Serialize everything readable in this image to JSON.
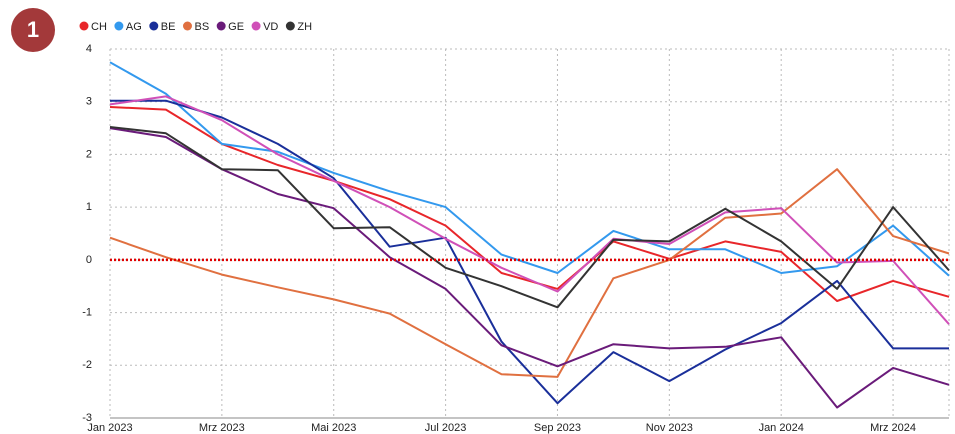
{
  "badge": "1",
  "chart_data": {
    "type": "line",
    "categories": [
      "Jan 2023",
      null,
      "Mrz 2023",
      null,
      "Mai 2023",
      null,
      "Jul 2023",
      null,
      "Sep 2023",
      null,
      "Nov 2023",
      null,
      "Jan 2024",
      null,
      "Mrz 2024",
      null
    ],
    "series": [
      {
        "name": "CH",
        "color": "#e8262a",
        "values": [
          2.9,
          2.85,
          2.2,
          1.8,
          1.5,
          1.15,
          0.65,
          -0.25,
          -0.55,
          0.35,
          0.02,
          0.35,
          0.15,
          -0.78,
          -0.4,
          -0.7
        ]
      },
      {
        "name": "AG",
        "color": "#3399ee",
        "values": [
          3.75,
          3.15,
          2.2,
          2.05,
          1.65,
          1.3,
          1.0,
          0.1,
          -0.25,
          0.55,
          0.2,
          0.2,
          -0.25,
          -0.12,
          0.65,
          -0.3
        ]
      },
      {
        "name": "BE",
        "color": "#1a2f9a",
        "values": [
          3.02,
          3.02,
          2.7,
          2.2,
          1.55,
          0.25,
          0.42,
          -1.55,
          -2.72,
          -1.75,
          -2.3,
          -1.7,
          -1.2,
          -0.4,
          -1.68,
          -1.68
        ]
      },
      {
        "name": "BS",
        "color": "#e07040",
        "values": [
          0.42,
          0.05,
          -0.28,
          -0.52,
          -0.75,
          -1.02,
          -1.6,
          -2.17,
          -2.22,
          -0.35,
          0.0,
          0.8,
          0.88,
          1.72,
          0.45,
          0.12
        ]
      },
      {
        "name": "GE",
        "color": "#6a1b7a",
        "values": [
          2.5,
          2.33,
          1.72,
          1.25,
          0.98,
          0.05,
          -0.55,
          -1.62,
          -2.02,
          -1.6,
          -1.68,
          -1.65,
          -1.47,
          -2.8,
          -2.05,
          -2.37
        ]
      },
      {
        "name": "VD",
        "color": "#d050b8",
        "values": [
          2.95,
          3.1,
          2.65,
          2.0,
          1.5,
          1.0,
          0.4,
          -0.15,
          -0.6,
          0.4,
          0.3,
          0.9,
          0.98,
          -0.05,
          -0.02,
          -1.22
        ]
      },
      {
        "name": "ZH",
        "color": "#333333",
        "values": [
          2.52,
          2.4,
          1.72,
          1.7,
          0.6,
          0.62,
          -0.15,
          -0.5,
          -0.9,
          0.38,
          0.35,
          0.97,
          0.35,
          -0.55,
          1.0,
          -0.2
        ]
      }
    ],
    "ylim": [
      -3,
      4
    ],
    "yticks": [
      -3,
      -2,
      -1,
      0,
      1,
      2,
      3,
      4
    ],
    "grid": true,
    "legend": "top-left",
    "reference_line": {
      "value": 0,
      "color": "#e00000"
    }
  }
}
